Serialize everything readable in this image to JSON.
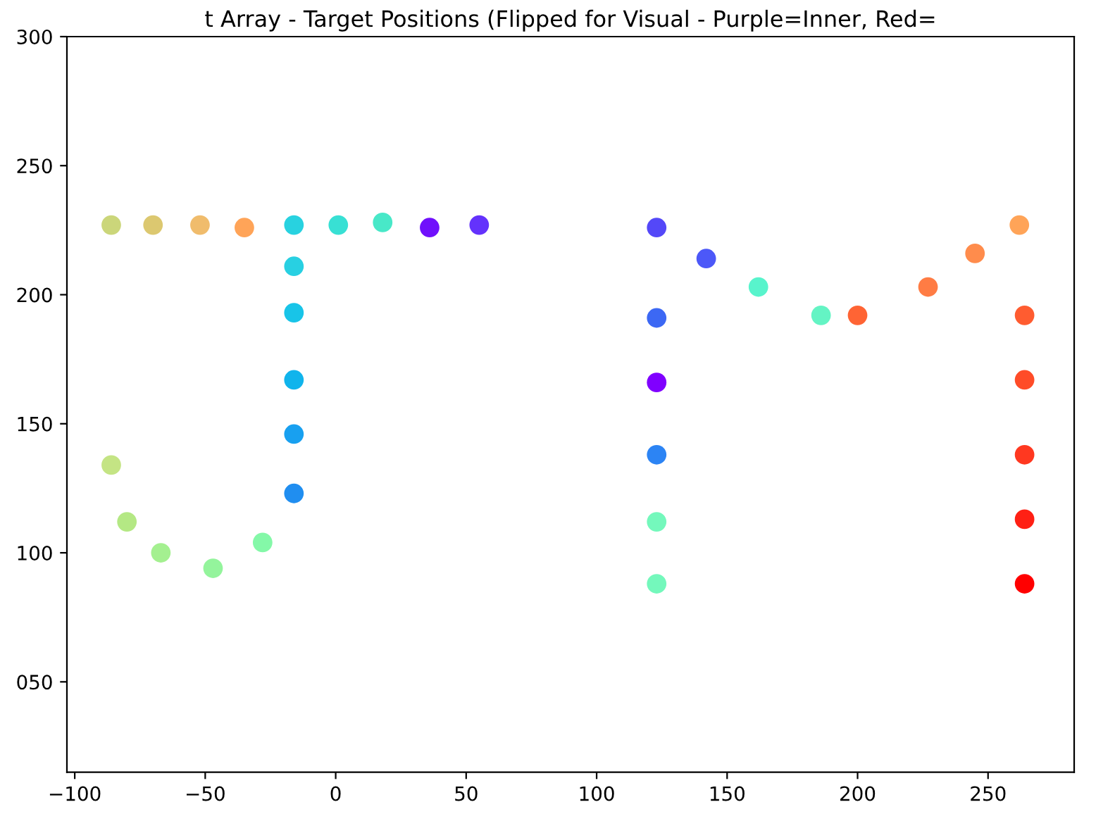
{
  "chart_data": {
    "type": "scatter",
    "title": "t Array - Target Positions (Flipped for Visual - Purple=Inner, Red=",
    "x": [
      -86,
      -70,
      -52,
      -35,
      -16,
      1,
      18,
      36,
      55,
      -16,
      -16,
      -16,
      -16,
      -16,
      -86,
      -80,
      -67,
      -47,
      -28,
      123,
      123,
      123,
      123,
      123,
      123,
      142,
      162,
      186,
      200,
      227,
      245,
      262,
      264,
      264,
      264,
      264,
      264
    ],
    "values": [
      227,
      227,
      227,
      226,
      227,
      227,
      228,
      226,
      227,
      211,
      193,
      167,
      146,
      123,
      134,
      112,
      100,
      94,
      104,
      226,
      191,
      166,
      138,
      112,
      88,
      214,
      203,
      192,
      192,
      203,
      216,
      227,
      192,
      167,
      138,
      113,
      88
    ],
    "colors": [
      "#cbd67a",
      "#dcc870",
      "#f0bc6c",
      "#ffa458",
      "#28d2e0",
      "#38e0d4",
      "#48e8c8",
      "#7010fc",
      "#6432fc",
      "#28d0e2",
      "#18c4e8",
      "#10b4ec",
      "#18a0f0",
      "#208ef0",
      "#c4e484",
      "#b4e884",
      "#a4f090",
      "#94f49c",
      "#84f8a8",
      "#5448f8",
      "#3c68f4",
      "#8000ff",
      "#2c84f4",
      "#74f8bc",
      "#74f8bc",
      "#4c58f8",
      "#58f4cc",
      "#64f4c4",
      "#ff6434",
      "#ff7c44",
      "#ff8c4c",
      "#ffa458",
      "#ff5c30",
      "#ff4c28",
      "#ff3820",
      "#ff2014",
      "#ff0000"
    ],
    "marker": "circle",
    "xlim": [
      -103,
      283
    ],
    "ylim": [
      15,
      300
    ],
    "xticks": [
      -100,
      -50,
      0,
      50,
      100,
      150,
      200,
      250
    ],
    "yticks": [
      {
        "value": 50,
        "label": "050"
      },
      100,
      150,
      200,
      250,
      300
    ]
  }
}
